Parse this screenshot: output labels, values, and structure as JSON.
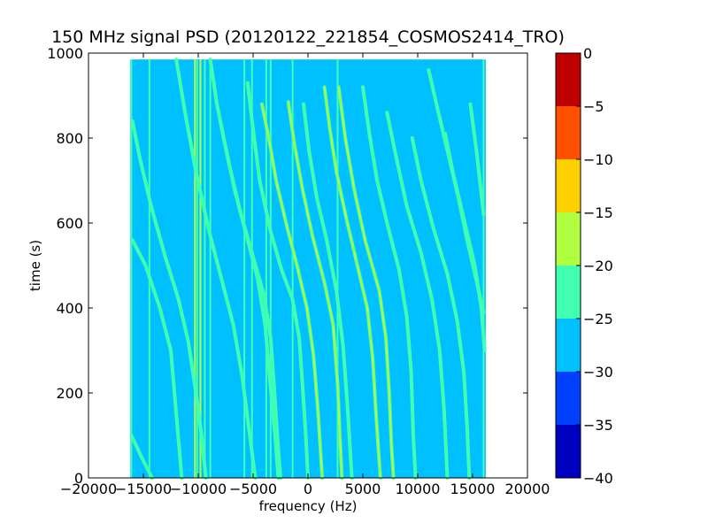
{
  "chart_data": [
    {
      "type": "heatmap",
      "title": "150 MHz signal PSD (20120122_221854_COSMOS2414_TRO)",
      "xlabel": "frequency (Hz)",
      "ylabel": "time (s)",
      "xlim": [
        -20000,
        20000
      ],
      "ylim": [
        0,
        1000
      ],
      "x_ticks": [
        -20000,
        -15000,
        -10000,
        -5000,
        0,
        5000,
        10000,
        15000,
        20000
      ],
      "x_tick_labels": [
        "−20000",
        "−15000",
        "−10000",
        "−5000",
        "0",
        "5000",
        "10000",
        "15000",
        "20000"
      ],
      "y_ticks": [
        0,
        200,
        400,
        600,
        800,
        1000
      ],
      "y_tick_labels": [
        "0",
        "200",
        "400",
        "600",
        "800",
        "1000"
      ],
      "data_extent": {
        "x": [
          -16200,
          16200
        ],
        "y": [
          0,
          985
        ]
      },
      "background_level": -28,
      "vertical_lines": [
        {
          "x": -16100,
          "level": -22
        },
        {
          "x": -14450,
          "level": -20
        },
        {
          "x": -10300,
          "level": -18
        },
        {
          "x": -10100,
          "level": -22
        },
        {
          "x": -9800,
          "level": -18
        },
        {
          "x": -9400,
          "level": -20
        },
        {
          "x": -8900,
          "level": -20
        },
        {
          "x": -5800,
          "level": -20
        },
        {
          "x": -5100,
          "level": -22
        },
        {
          "x": -3800,
          "level": -20
        },
        {
          "x": -3400,
          "level": -22
        },
        {
          "x": -1400,
          "level": -20
        },
        {
          "x": 2700,
          "level": -20
        },
        {
          "x": 16000,
          "level": -22
        }
      ],
      "tracks": [
        {
          "points": [
            [
              -16100,
              100
            ],
            [
              -15000,
              40
            ],
            [
              -14200,
              0
            ]
          ],
          "level": -20
        },
        {
          "points": [
            [
              -16000,
              560
            ],
            [
              -14800,
              500
            ],
            [
              -13500,
              400
            ],
            [
              -12500,
              300
            ],
            [
              -12000,
              150
            ],
            [
              -11500,
              0
            ]
          ],
          "level": -20
        },
        {
          "points": [
            [
              -16000,
              840
            ],
            [
              -15300,
              750
            ],
            [
              -14300,
              640
            ],
            [
              -13000,
              520
            ],
            [
              -11800,
              420
            ],
            [
              -10900,
              320
            ],
            [
              -10200,
              200
            ],
            [
              -9700,
              100
            ],
            [
              -9300,
              0
            ]
          ],
          "level": -20
        },
        {
          "points": [
            [
              -12000,
              985
            ],
            [
              -11200,
              860
            ],
            [
              -10200,
              720
            ],
            [
              -9000,
              580
            ],
            [
              -7800,
              460
            ],
            [
              -6800,
              360
            ],
            [
              -6000,
              240
            ],
            [
              -5400,
              120
            ],
            [
              -4800,
              0
            ]
          ],
          "level": -20
        },
        {
          "points": [
            [
              -8900,
              985
            ],
            [
              -8300,
              880
            ],
            [
              -7600,
              790
            ],
            [
              -6700,
              680
            ],
            [
              -5600,
              570
            ],
            [
              -4600,
              470
            ],
            [
              -3900,
              360
            ],
            [
              -3500,
              240
            ],
            [
              -3000,
              100
            ],
            [
              -2700,
              0
            ]
          ],
          "level": -20
        },
        {
          "points": [
            [
              -8000,
              840
            ],
            [
              -7200,
              740
            ],
            [
              -6200,
              630
            ],
            [
              -5000,
              520
            ],
            [
              -4000,
              430
            ],
            [
              -3400,
              330
            ],
            [
              -3100,
              220
            ],
            [
              -2800,
              100
            ],
            [
              -2500,
              0
            ]
          ],
          "level": -20
        },
        {
          "points": [
            [
              -5500,
              930
            ],
            [
              -5000,
              820
            ],
            [
              -4400,
              700
            ],
            [
              -3400,
              580
            ],
            [
              -2400,
              490
            ],
            [
              -1400,
              420
            ],
            [
              -800,
              330
            ],
            [
              -500,
              220
            ],
            [
              -200,
              100
            ],
            [
              0,
              0
            ]
          ],
          "level": -20
        },
        {
          "points": [
            [
              -4200,
              880
            ],
            [
              -3500,
              790
            ],
            [
              -2900,
              700
            ],
            [
              -1900,
              590
            ],
            [
              -900,
              490
            ],
            [
              -100,
              400
            ],
            [
              500,
              290
            ],
            [
              900,
              160
            ],
            [
              1300,
              0
            ]
          ],
          "level": -17
        },
        {
          "points": [
            [
              -1800,
              885
            ],
            [
              -1200,
              780
            ],
            [
              -500,
              680
            ],
            [
              400,
              570
            ],
            [
              1500,
              460
            ],
            [
              2300,
              360
            ],
            [
              2700,
              220
            ],
            [
              2900,
              100
            ],
            [
              3100,
              0
            ]
          ],
          "level": -17
        },
        {
          "points": [
            [
              -400,
              880
            ],
            [
              100,
              770
            ],
            [
              800,
              660
            ],
            [
              1700,
              560
            ],
            [
              2600,
              440
            ],
            [
              3200,
              310
            ],
            [
              3600,
              170
            ],
            [
              4000,
              0
            ]
          ],
          "level": -20
        },
        {
          "points": [
            [
              1500,
              920
            ],
            [
              2000,
              820
            ],
            [
              2600,
              720
            ],
            [
              3500,
              610
            ],
            [
              4500,
              500
            ],
            [
              5400,
              400
            ],
            [
              5900,
              280
            ],
            [
              6200,
              150
            ],
            [
              6600,
              0
            ]
          ],
          "level": -17
        },
        {
          "points": [
            [
              2800,
              920
            ],
            [
              3400,
              800
            ],
            [
              4200,
              680
            ],
            [
              5200,
              560
            ],
            [
              6500,
              440
            ],
            [
              7100,
              330
            ],
            [
              7400,
              200
            ],
            [
              7600,
              80
            ],
            [
              7800,
              0
            ]
          ],
          "level": -17
        },
        {
          "points": [
            [
              5000,
              920
            ],
            [
              5600,
              810
            ],
            [
              6300,
              700
            ],
            [
              7300,
              590
            ],
            [
              8300,
              490
            ],
            [
              9000,
              380
            ],
            [
              9400,
              250
            ],
            [
              9600,
              100
            ],
            [
              9800,
              0
            ]
          ],
          "level": -20
        },
        {
          "points": [
            [
              7200,
              860
            ],
            [
              8000,
              760
            ],
            [
              9000,
              640
            ],
            [
              10300,
              530
            ],
            [
              11300,
              420
            ],
            [
              12000,
              300
            ],
            [
              12400,
              160
            ],
            [
              12700,
              0
            ]
          ],
          "level": -20
        },
        {
          "points": [
            [
              9500,
              800
            ],
            [
              10300,
              700
            ],
            [
              11400,
              590
            ],
            [
              12700,
              480
            ],
            [
              13600,
              370
            ],
            [
              14200,
              250
            ],
            [
              14500,
              120
            ],
            [
              14700,
              0
            ]
          ],
          "level": -20
        },
        {
          "points": [
            [
              12500,
              810
            ],
            [
              13200,
              720
            ],
            [
              14200,
              610
            ],
            [
              15200,
              500
            ],
            [
              15800,
              400
            ],
            [
              16100,
              300
            ]
          ],
          "level": -20
        },
        {
          "points": [
            [
              14800,
              880
            ],
            [
              15400,
              760
            ],
            [
              16000,
              620
            ]
          ],
          "level": -20
        },
        {
          "points": [
            [
              11000,
              960
            ],
            [
              11800,
              870
            ],
            [
              12800,
              760
            ],
            [
              13700,
              660
            ],
            [
              14500,
              560
            ],
            [
              15300,
              470
            ],
            [
              16000,
              390
            ]
          ],
          "level": -23
        }
      ],
      "colorbar": {
        "range": [
          -40,
          0
        ],
        "ticks": [
          0,
          -5,
          -10,
          -15,
          -20,
          -25,
          -30,
          -35,
          -40
        ],
        "tick_labels": [
          "0",
          "−5",
          "−10",
          "−15",
          "−20",
          "−25",
          "−30",
          "−35",
          "−40"
        ],
        "bands": [
          {
            "from": -40,
            "to": -35,
            "color": "#0000c0"
          },
          {
            "from": -35,
            "to": -30,
            "color": "#0040ff"
          },
          {
            "from": -30,
            "to": -25,
            "color": "#00c0ff"
          },
          {
            "from": -25,
            "to": -20,
            "color": "#40ffb0"
          },
          {
            "from": -20,
            "to": -15,
            "color": "#b0ff40"
          },
          {
            "from": -15,
            "to": -10,
            "color": "#ffd000"
          },
          {
            "from": -10,
            "to": -5,
            "color": "#ff5000"
          },
          {
            "from": -5,
            "to": 0,
            "color": "#c00000"
          }
        ]
      }
    }
  ]
}
